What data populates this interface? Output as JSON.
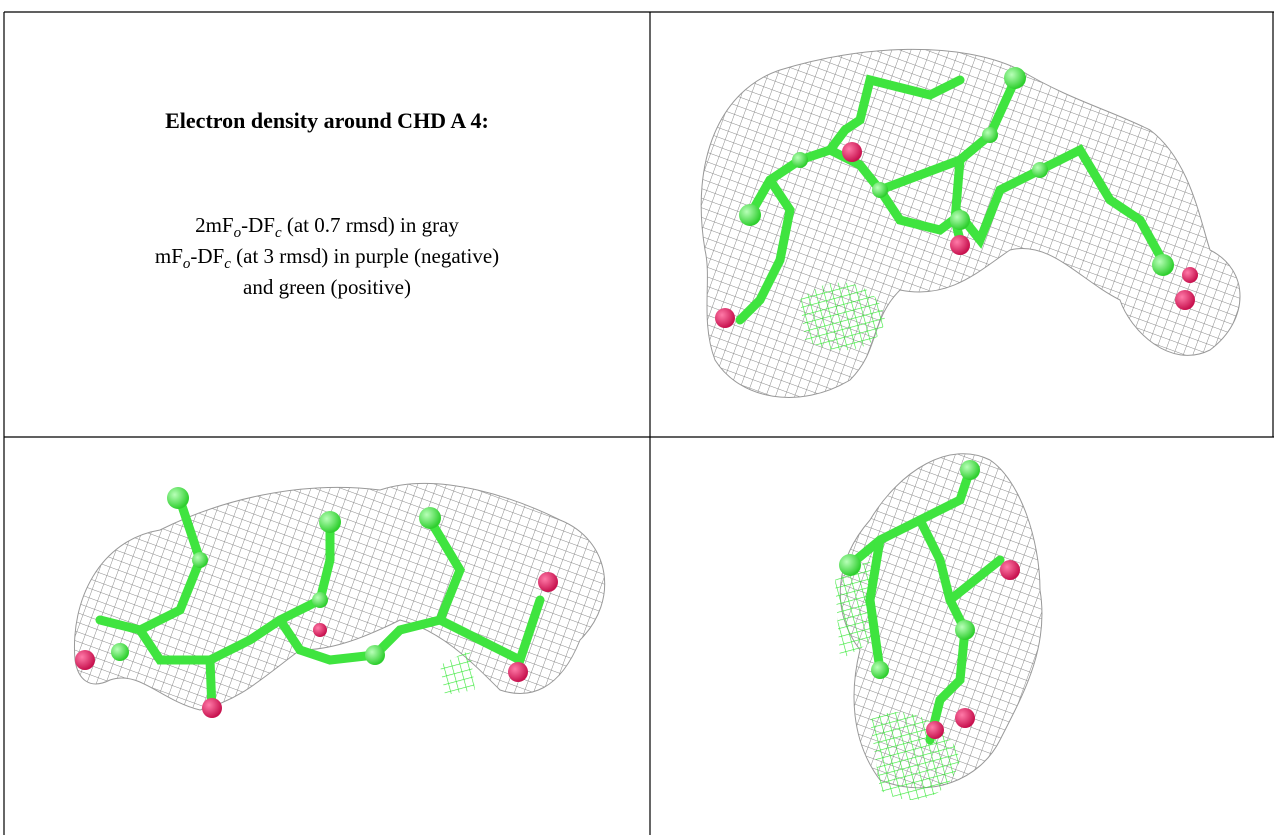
{
  "caption": {
    "title": "Electron density around CHD A 4:",
    "lines": [
      [
        "2mF",
        "o",
        "-DF",
        "c",
        " (at 0.7 rmsd) in gray"
      ],
      [
        "mF",
        "o",
        "-DF",
        "c",
        " (at 3 rmsd) in purple (negative)"
      ],
      [
        "and green (positive)"
      ]
    ]
  }
}
